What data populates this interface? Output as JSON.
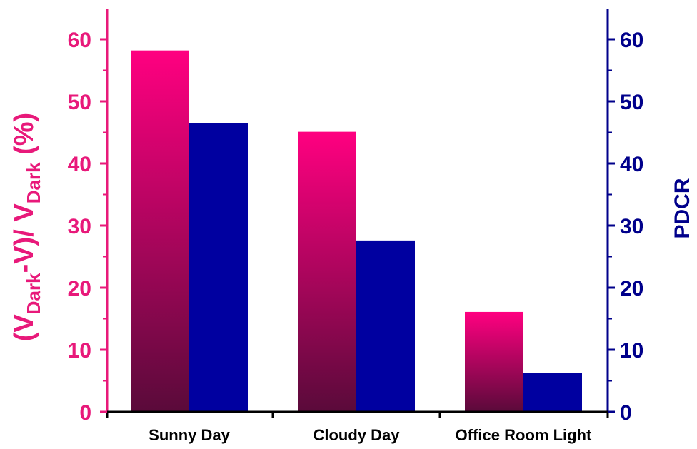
{
  "chart_data": {
    "type": "bar",
    "categories": [
      "Sunny Day",
      "Cloudy Day",
      "Office Room Light"
    ],
    "series": [
      {
        "values": [
          58.2,
          45.1,
          16.1
        ],
        "axis": "left",
        "color": "#ff0080",
        "gradient_bottom": "#5a0a3a"
      },
      {
        "values": [
          46.5,
          27.6,
          6.3
        ],
        "axis": "right",
        "color": "#0000a0"
      }
    ],
    "y_left": {
      "label": {
        "p1": "(V",
        "s1": "Dark",
        "p2": "-V)/ V",
        "s2": "Dark",
        "p3": " (%)"
      },
      "ylim": [
        0,
        65
      ],
      "ticks": [
        "0",
        "10",
        "20",
        "30",
        "40",
        "50",
        "60"
      ],
      "color": "#e8197a"
    },
    "y_right": {
      "label": "PDCR",
      "ylim": [
        0,
        65
      ],
      "ticks": [
        "0",
        "10",
        "20",
        "30",
        "40",
        "50",
        "60"
      ],
      "color": "#00008b"
    },
    "grid": false,
    "legend": "none"
  }
}
